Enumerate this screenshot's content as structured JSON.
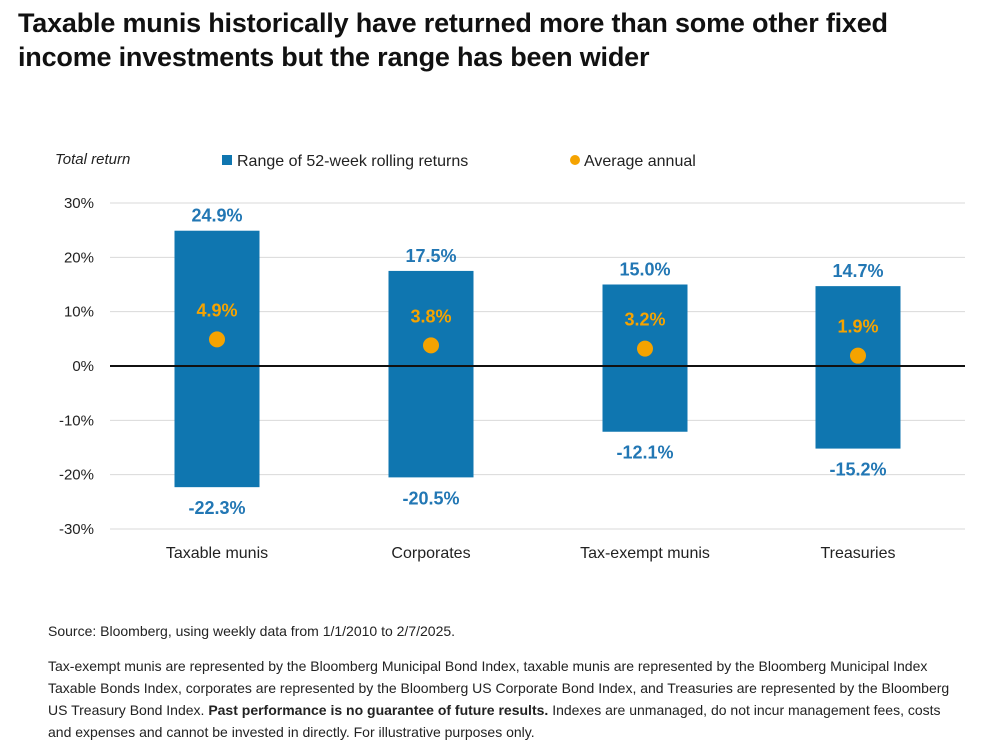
{
  "title": "Taxable munis historically have returned more than some other fixed income investments but the range has been wider",
  "chart_data": {
    "type": "bar",
    "subtype": "floating-range-with-markers",
    "y_axis_title": "Total return",
    "legend": {
      "range_label": "Range of 52-week rolling returns",
      "avg_label": "Average annual",
      "placement": "top"
    },
    "categories": [
      "Taxable munis",
      "Corporates",
      "Tax-exempt munis",
      "Treasuries"
    ],
    "series": [
      {
        "name": "Range of 52-week rolling returns",
        "high": [
          24.9,
          17.5,
          15.0,
          14.7
        ],
        "low": [
          -22.3,
          -20.5,
          -12.1,
          -15.2
        ]
      },
      {
        "name": "Average annual",
        "values": [
          4.9,
          3.8,
          3.2,
          1.9
        ]
      }
    ],
    "high_labels": [
      "24.9%",
      "17.5%",
      "15.0%",
      "14.7%"
    ],
    "low_labels": [
      "-22.3%",
      "-20.5%",
      "-12.1%",
      "-15.2%"
    ],
    "avg_labels": [
      "4.9%",
      "3.8%",
      "3.2%",
      "1.9%"
    ],
    "y_ticks": [
      30,
      20,
      10,
      0,
      -10,
      -20,
      -30
    ],
    "y_tick_labels": [
      "30%",
      "20%",
      "10%",
      "0%",
      "-10%",
      "-20%",
      "-30%"
    ],
    "ylim": [
      -30,
      30
    ],
    "grid": true,
    "colors": {
      "range": "#0f76b0",
      "avg": "#f5a300",
      "label": "#2277b4",
      "zero_line": "#111111",
      "grid": "#d9d9d9"
    }
  },
  "source": "Source: Bloomberg, using weekly data from 1/1/2010 to 2/7/2025.",
  "note": {
    "text_before": "Tax-exempt munis are represented by the Bloomberg Municipal Bond Index, taxable munis are represented by the Bloomberg Municipal Index Taxable Bonds Index, corporates are represented by the Bloomberg US Corporate Bond Index, and Treasuries are represented by the Bloomberg US Treasury Bond Index.",
    "bold": "Past performance is no guarantee of future results.",
    "text_after": "Indexes are unmanaged, do not incur management fees, costs and expenses and cannot be invested in directly. For illustrative purposes only."
  }
}
